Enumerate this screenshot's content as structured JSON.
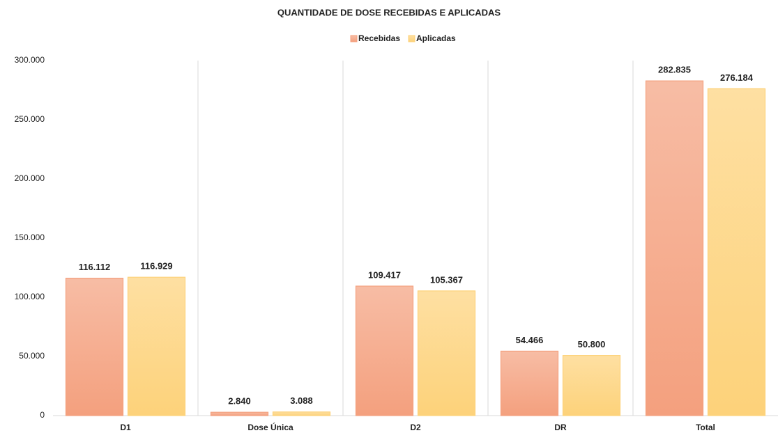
{
  "chart_data": {
    "type": "bar",
    "title": "QUANTIDADE DE DOSE RECEBIDAS E APLICADAS",
    "categories": [
      "D1",
      "Dose Única",
      "D2",
      "DR",
      "Total"
    ],
    "series": [
      {
        "name": "Recebidas",
        "color": "#f4a07e",
        "values": [
          116112,
          2840,
          109417,
          54466,
          282835
        ],
        "value_labels": [
          "116.112",
          "2.840",
          "109.417",
          "54.466",
          "282.835"
        ]
      },
      {
        "name": "Aplicadas",
        "color": "#fdd27a",
        "values": [
          116929,
          3088,
          105367,
          50800,
          276184
        ],
        "value_labels": [
          "116.929",
          "3.088",
          "105.367",
          "50.800",
          "276.184"
        ]
      }
    ],
    "ylim": [
      0,
      300000
    ],
    "yticks": [
      {
        "value": 0,
        "label": "0"
      },
      {
        "value": 50000,
        "label": "50.000"
      },
      {
        "value": 100000,
        "label": "100.000"
      },
      {
        "value": 150000,
        "label": "150.000"
      },
      {
        "value": 200000,
        "label": "200.000"
      },
      {
        "value": 250000,
        "label": "250.000"
      },
      {
        "value": 300000,
        "label": "300.000"
      }
    ],
    "legend": "top"
  }
}
